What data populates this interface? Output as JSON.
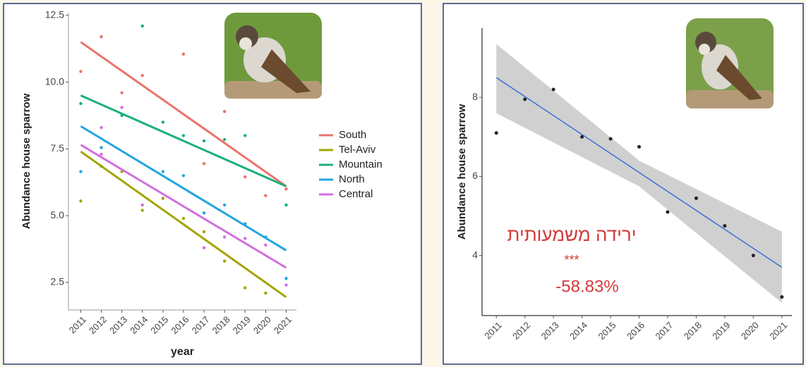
{
  "chart_data": [
    {
      "type": "line",
      "x_label": "year",
      "y_label": "Abundance house sparrow",
      "xlim": [
        2010.4,
        2021.5
      ],
      "xticks": [
        2011,
        2012,
        2013,
        2014,
        2015,
        2016,
        2017,
        2018,
        2019,
        2020,
        2021
      ],
      "ylim": [
        1.47,
        12.6
      ],
      "yticks": [
        {
          "value": 2.5,
          "label": "2.5"
        },
        {
          "value": 5,
          "label": "5.0"
        },
        {
          "value": 7.5,
          "label": "7.5"
        },
        {
          "value": 10,
          "label": "10.0"
        },
        {
          "value": 12.5,
          "label": "12.5"
        }
      ],
      "legend": "right",
      "series": [
        {
          "name": "South",
          "color": "#e8746b",
          "x": [
            2011,
            2021
          ],
          "values": [
            11.5,
            6.1
          ],
          "points": {
            "x": [
              2011,
              2012,
              2013,
              2014,
              2016,
              2017,
              2018,
              2019,
              2020,
              2021
            ],
            "y": [
              10.4,
              11.7,
              9.6,
              10.25,
              11.05,
              6.95,
              8.9,
              6.45,
              5.75,
              6.0
            ]
          }
        },
        {
          "name": "Tel-Aviv",
          "color": "#a3a500",
          "x": [
            2011,
            2021
          ],
          "values": [
            7.4,
            1.95
          ],
          "points": {
            "x": [
              2011,
              2012,
              2013,
              2014,
              2015,
              2016,
              2017,
              2018,
              2019,
              2020
            ],
            "y": [
              5.55,
              6.85,
              6.65,
              5.2,
              5.65,
              4.9,
              4.4,
              3.3,
              2.3,
              2.1
            ]
          }
        },
        {
          "name": "Mountain",
          "color": "#1bb07b",
          "x": [
            2011,
            2021
          ],
          "values": [
            9.5,
            6.1
          ],
          "points": {
            "x": [
              2011,
              2013,
              2014,
              2015,
              2016,
              2017,
              2018,
              2019,
              2021
            ],
            "y": [
              9.2,
              8.75,
              12.1,
              8.5,
              8.0,
              7.8,
              7.85,
              8.0,
              5.4
            ]
          }
        },
        {
          "name": "North",
          "color": "#22a5e0",
          "x": [
            2011,
            2021
          ],
          "values": [
            8.35,
            3.7
          ],
          "points": {
            "x": [
              2011,
              2012,
              2015,
              2016,
              2017,
              2018,
              2019,
              2020,
              2021
            ],
            "y": [
              6.65,
              7.55,
              6.65,
              6.5,
              5.1,
              5.4,
              4.7,
              4.2,
              2.65
            ]
          }
        },
        {
          "name": "Central",
          "color": "#d36ee0",
          "x": [
            2011,
            2021
          ],
          "values": [
            7.65,
            3.05
          ],
          "points": {
            "x": [
              2012,
              2012,
              2013,
              2014,
              2017,
              2018,
              2019,
              2020,
              2021
            ],
            "y": [
              7.3,
              8.3,
              9.05,
              5.4,
              3.8,
              4.2,
              4.15,
              3.9,
              2.4
            ]
          }
        }
      ]
    },
    {
      "type": "scatter",
      "y_label": "Abundance house sparrow",
      "xlim": [
        2010.5,
        2021.35
      ],
      "xticks": [
        2011,
        2012,
        2013,
        2014,
        2015,
        2016,
        2017,
        2018,
        2019,
        2020,
        2021
      ],
      "ylim": [
        2.48,
        9.75
      ],
      "yticks": [
        4,
        6,
        8
      ],
      "x": [
        2011,
        2012,
        2013,
        2014,
        2015,
        2016,
        2017,
        2018,
        2019,
        2020,
        2021
      ],
      "values": [
        7.1,
        7.95,
        8.2,
        7.0,
        6.95,
        6.75,
        5.1,
        5.45,
        4.75,
        4.0,
        2.95
      ],
      "color": "#222222",
      "fit": {
        "color": "#3a6fd8",
        "band_color": "#c8c8c8",
        "x": [
          2011,
          2016,
          2021
        ],
        "values": [
          8.5,
          6.1,
          3.7
        ],
        "upper": [
          9.35,
          6.4,
          4.6
        ],
        "lower": [
          7.6,
          5.75,
          2.8
        ]
      },
      "annotations": [
        "ירידה משמעותית",
        "***",
        "-58.83%"
      ],
      "annotation_color": "#d33a3a"
    }
  ]
}
